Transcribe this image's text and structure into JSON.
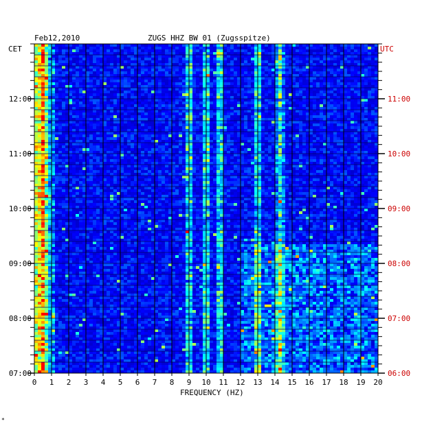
{
  "chart_data": {
    "type": "heatmap",
    "date": "Feb12,2010",
    "title": "ZUGS HHZ BW 01 (Zugsspitze)",
    "xlabel": "FREQUENCY (HZ)",
    "x_ticks": [
      "0",
      "1",
      "2",
      "3",
      "4",
      "5",
      "6",
      "7",
      "8",
      "9",
      "10",
      "11",
      "12",
      "13",
      "14",
      "15",
      "16",
      "17",
      "18",
      "19",
      "20"
    ],
    "xlim": [
      0,
      20
    ],
    "left_axis": {
      "label": "CET",
      "ticks": [
        "12:00",
        "11:00",
        "10:00",
        "09:00",
        "08:00",
        "07:00"
      ]
    },
    "right_axis": {
      "label": "UTC",
      "ticks": [
        "11:00",
        "10:00",
        "09:00",
        "08:00",
        "07:00",
        "06:00"
      ]
    },
    "time_range_cet": [
      "07:00",
      "13:00"
    ],
    "colormap": [
      "#000080",
      "#0000ff",
      "#00ffff",
      "#ffff00",
      "#ff0000"
    ],
    "dominant_frequency_bands_hz": [
      0.5,
      9.0,
      10.0,
      10.8,
      13.0,
      14.3
    ],
    "grid": true
  },
  "footer_mark": "*"
}
